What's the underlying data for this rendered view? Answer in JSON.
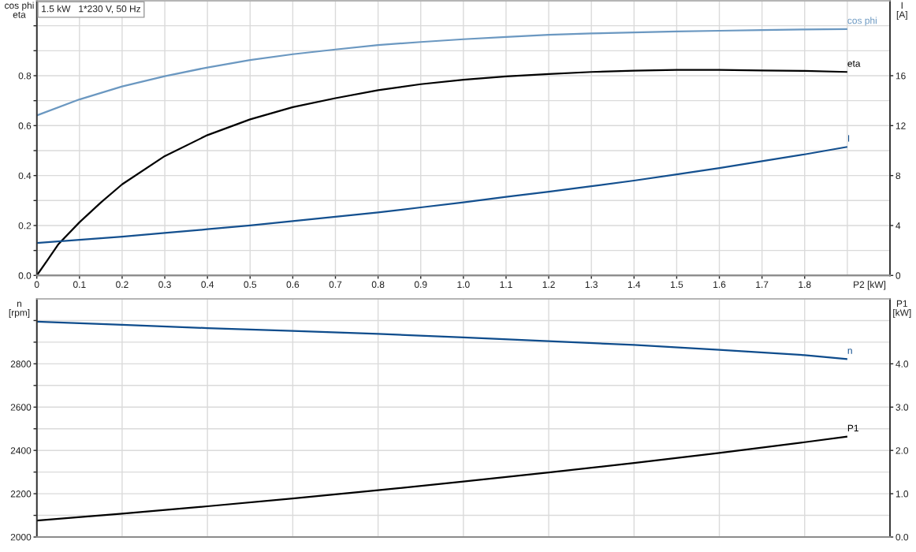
{
  "chart_data": [
    {
      "type": "line",
      "title": "1.5 kW   1*230 V, 50 Hz",
      "xlabel": "P2 [kW]",
      "ylabel": "cos phi\neta",
      "y2label": "I\n[A]",
      "xlim": [
        0,
        2
      ],
      "xticks": [
        0,
        0.1,
        0.2,
        0.3,
        0.4,
        0.5,
        0.6,
        0.7,
        0.8,
        0.9,
        {
          "value": 1,
          "label": "1.0"
        },
        1.1,
        1.2,
        1.3,
        1.4,
        1.5,
        1.6,
        1.7,
        1.8,
        {
          "value": 1.9,
          "label": null
        }
      ],
      "ylim": [
        0,
        1.1
      ],
      "yticks": [
        {
          "value": 0,
          "label": "0.0"
        },
        {
          "value": 0.1,
          "label": null
        },
        0.2,
        {
          "value": 0.3,
          "label": null
        },
        0.4,
        {
          "value": 0.5,
          "label": null
        },
        0.6,
        {
          "value": 0.7,
          "label": null
        },
        0.8,
        {
          "value": 0.9,
          "label": null
        },
        {
          "value": 1,
          "label": null
        }
      ],
      "y2lim": [
        0,
        22
      ],
      "y2ticks": [
        0,
        {
          "value": 2,
          "label": null
        },
        4,
        {
          "value": 6,
          "label": null
        },
        8,
        {
          "value": 10,
          "label": null
        },
        12,
        {
          "value": 14,
          "label": null
        },
        16,
        {
          "value": 18,
          "label": null
        },
        {
          "value": 20,
          "label": null
        }
      ],
      "grid": true,
      "x": [
        0,
        0.1,
        0.2,
        0.3,
        0.4,
        0.5,
        0.6,
        0.7,
        0.8,
        0.9,
        1.0,
        1.1,
        1.2,
        1.3,
        1.4,
        1.5,
        1.6,
        1.7,
        1.8,
        1.9
      ],
      "series": [
        {
          "name": "cos phi",
          "color": "#6b98c1",
          "values": [
            0.641,
            0.705,
            0.757,
            0.798,
            0.833,
            0.863,
            0.886,
            0.905,
            0.923,
            0.935,
            0.946,
            0.955,
            0.964,
            0.969,
            0.973,
            0.977,
            0.98,
            0.983,
            0.985,
            0.987
          ]
        },
        {
          "name": "eta",
          "color": "#000000",
          "x": [
            0,
            0.025,
            0.05,
            0.1,
            0.15,
            0.2,
            0.3,
            0.4,
            0.5,
            0.6,
            0.7,
            0.8,
            0.9,
            1.0,
            1.1,
            1.2,
            1.3,
            1.4,
            1.5,
            1.6,
            1.7,
            1.8,
            1.9
          ],
          "values": [
            0,
            0.061,
            0.124,
            0.213,
            0.292,
            0.365,
            0.478,
            0.562,
            0.625,
            0.674,
            0.71,
            0.742,
            0.766,
            0.784,
            0.797,
            0.807,
            0.815,
            0.82,
            0.823,
            0.823,
            0.821,
            0.819,
            0.815
          ]
        },
        {
          "name": "I",
          "color": "#14508f",
          "axis": "y2",
          "values": [
            2.6,
            2.85,
            3.1,
            3.4,
            3.7,
            4.0,
            4.35,
            4.7,
            5.05,
            5.45,
            5.85,
            6.3,
            6.7,
            7.15,
            7.6,
            8.1,
            8.6,
            9.15,
            9.7,
            10.3
          ]
        }
      ]
    },
    {
      "type": "line",
      "ylabel": "n\n[rpm]",
      "y2label": "P1\n[kW]",
      "tick_labels": "y",
      "xlim": [
        0,
        2
      ],
      "xticks": [
        0.2,
        0.4,
        0.6,
        0.8,
        1.0,
        1.2,
        1.4,
        1.6,
        1.8
      ],
      "ylim": [
        2000,
        3100
      ],
      "yticks": [
        2000,
        {
          "value": 2100,
          "label": null
        },
        2200,
        {
          "value": 2300,
          "label": null
        },
        2400,
        {
          "value": 2500,
          "label": null
        },
        2600,
        {
          "value": 2700,
          "label": null
        },
        2800,
        {
          "value": 2900,
          "label": null
        },
        {
          "value": 3000,
          "label": null
        }
      ],
      "y2lim": [
        0,
        5.5
      ],
      "y2ticks": [
        {
          "value": 0,
          "label": "0.0"
        },
        {
          "value": 0.5,
          "label": null
        },
        {
          "value": 1,
          "label": "1.0"
        },
        {
          "value": 1.5,
          "label": null
        },
        {
          "value": 2,
          "label": "2.0"
        },
        {
          "value": 2.5,
          "label": null
        },
        {
          "value": 3,
          "label": "3.0"
        },
        {
          "value": 3.5,
          "label": null
        },
        {
          "value": 4,
          "label": "4.0"
        },
        {
          "value": 4.5,
          "label": null
        },
        {
          "value": 5,
          "label": null
        }
      ],
      "grid": true,
      "x": [
        0,
        0.2,
        0.4,
        0.6,
        0.8,
        1.0,
        1.2,
        1.4,
        1.6,
        1.8,
        1.9
      ],
      "series": [
        {
          "name": "n",
          "color": "#0e4c8c",
          "values": [
            2995,
            2980,
            2965,
            2952,
            2938,
            2922,
            2905,
            2887,
            2865,
            2840,
            2822
          ]
        },
        {
          "name": "P1",
          "color": "#000000",
          "axis": "y2",
          "values": [
            0.38,
            0.54,
            0.71,
            0.89,
            1.08,
            1.28,
            1.49,
            1.71,
            1.94,
            2.19,
            2.32
          ]
        }
      ]
    }
  ]
}
